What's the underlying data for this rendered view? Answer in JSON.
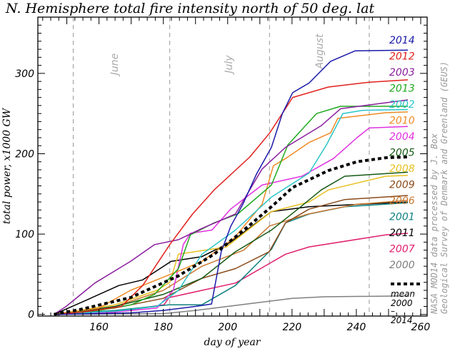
{
  "chart_data": {
    "type": "line",
    "title": "N. Hemisphere total fire intensity north of 50 deg. lat",
    "xlabel": "day of year",
    "ylabel": "total power, x1000 GW",
    "xlim": [
      141,
      262
    ],
    "ylim": [
      -2,
      370
    ],
    "xticks": [
      160,
      180,
      200,
      220,
      240,
      260
    ],
    "yticks": [
      0,
      100,
      200,
      300
    ],
    "grid": false,
    "legend_placement": "right",
    "month_markers": [
      {
        "label": "June",
        "day": 152
      },
      {
        "label": "July",
        "day": 182
      },
      {
        "label": "August",
        "day": 213
      },
      {
        "label": "",
        "day": 244
      }
    ],
    "credit_lines": [
      "NASA MOD14 data processed by J. Box",
      "Geological Survey of Denmark and Greenland (GEUS)"
    ],
    "mean_label": [
      "mean",
      "2000",
      "–",
      "2014"
    ],
    "series": [
      {
        "name": "2014",
        "color": "#1a1aa8",
        "points": [
          [
            146,
            0
          ],
          [
            160,
            1
          ],
          [
            170,
            2
          ],
          [
            180,
            5
          ],
          [
            190,
            10
          ],
          [
            195,
            13
          ],
          [
            198,
            78
          ],
          [
            201,
            110
          ],
          [
            204.7,
            137
          ],
          [
            209,
            175
          ],
          [
            213.6,
            208
          ],
          [
            217,
            250
          ],
          [
            220.2,
            276
          ],
          [
            225.3,
            288
          ],
          [
            232,
            315
          ],
          [
            239.6,
            328
          ],
          [
            256,
            329
          ]
        ]
      },
      {
        "name": "2012",
        "color": "#e0201c",
        "points": [
          [
            146,
            0
          ],
          [
            155,
            3
          ],
          [
            167,
            10
          ],
          [
            173.6,
            36
          ],
          [
            182,
            87
          ],
          [
            189.1,
            125
          ],
          [
            195.8,
            155
          ],
          [
            206.9,
            196
          ],
          [
            213.1,
            226
          ],
          [
            220.2,
            270
          ],
          [
            231.3,
            283
          ],
          [
            244,
            289
          ],
          [
            256,
            292
          ]
        ]
      },
      {
        "name": "2003",
        "color": "#8a1e9e",
        "points": [
          [
            146,
            0
          ],
          [
            149.8,
            10
          ],
          [
            158.7,
            39
          ],
          [
            169.8,
            66
          ],
          [
            177.3,
            87
          ],
          [
            184.7,
            93
          ],
          [
            192,
            107
          ],
          [
            202.4,
            125
          ],
          [
            210.7,
            181
          ],
          [
            218,
            208
          ],
          [
            229.1,
            235
          ],
          [
            235.1,
            256
          ],
          [
            256,
            267
          ]
        ]
      },
      {
        "name": "2013",
        "color": "#1fa81f",
        "points": [
          [
            146,
            0
          ],
          [
            160,
            5
          ],
          [
            170,
            12
          ],
          [
            177.3,
            25
          ],
          [
            184.7,
            57
          ],
          [
            188.4,
            99
          ],
          [
            195.8,
            114
          ],
          [
            203.1,
            125
          ],
          [
            213.6,
            161
          ],
          [
            218.7,
            211
          ],
          [
            227.6,
            250
          ],
          [
            235.1,
            259
          ],
          [
            256,
            259
          ]
        ]
      },
      {
        "name": "2002",
        "color": "#2ac4c8",
        "points": [
          [
            146,
            0
          ],
          [
            165,
            4
          ],
          [
            178,
            10
          ],
          [
            184.7,
            30
          ],
          [
            192,
            75
          ],
          [
            202.4,
            105
          ],
          [
            213.6,
            146
          ],
          [
            225.3,
            176
          ],
          [
            230.7,
            211
          ],
          [
            235.8,
            250
          ],
          [
            241.8,
            254
          ],
          [
            256,
            255
          ]
        ]
      },
      {
        "name": "2010",
        "color": "#f08a24",
        "points": [
          [
            146,
            0
          ],
          [
            160,
            8
          ],
          [
            169.8,
            30
          ],
          [
            181,
            48
          ],
          [
            192,
            66
          ],
          [
            202,
            95
          ],
          [
            210.7,
            137
          ],
          [
            214.2,
            185
          ],
          [
            218,
            194
          ],
          [
            225.3,
            214
          ],
          [
            232,
            226
          ],
          [
            234.2,
            244
          ],
          [
            249.1,
            251
          ],
          [
            256,
            252
          ]
        ]
      },
      {
        "name": "2004",
        "color": "#e030e0",
        "points": [
          [
            146,
            0
          ],
          [
            165,
            3
          ],
          [
            178,
            8
          ],
          [
            183.1,
            30
          ],
          [
            186.2,
            87
          ],
          [
            188.4,
            101
          ],
          [
            195.1,
            105
          ],
          [
            200.9,
            131
          ],
          [
            210.7,
            161
          ],
          [
            223.1,
            172
          ],
          [
            232.9,
            194
          ],
          [
            240.2,
            220
          ],
          [
            244,
            232
          ],
          [
            256,
            234
          ]
        ]
      },
      {
        "name": "2005",
        "color": "#145a14",
        "points": [
          [
            146,
            0
          ],
          [
            165,
            10
          ],
          [
            180,
            25
          ],
          [
            192,
            45
          ],
          [
            202.4,
            78
          ],
          [
            213.6,
            105
          ],
          [
            221.8,
            131
          ],
          [
            229.1,
            155
          ],
          [
            236.4,
            172
          ],
          [
            256,
            177
          ]
        ]
      },
      {
        "name": "2008",
        "color": "#e8c020",
        "points": [
          [
            146,
            0
          ],
          [
            165,
            12
          ],
          [
            178,
            30
          ],
          [
            182,
            40
          ],
          [
            184.7,
            75
          ],
          [
            199.6,
            84
          ],
          [
            213.6,
            128
          ],
          [
            225.3,
            140
          ],
          [
            231.3,
            155
          ],
          [
            249.1,
            172
          ],
          [
            256,
            173
          ]
        ]
      },
      {
        "name": "2009",
        "color": "#8a4a1a",
        "points": [
          [
            146,
            0
          ],
          [
            165,
            8
          ],
          [
            180,
            20
          ],
          [
            192,
            45
          ],
          [
            202.4,
            57
          ],
          [
            212.9,
            78
          ],
          [
            218,
            114
          ],
          [
            225.3,
            131
          ],
          [
            236.4,
            143
          ],
          [
            256,
            148
          ]
        ]
      },
      {
        "name": "2006",
        "color": "#c87830",
        "points": [
          [
            146,
            0
          ],
          [
            165,
            10
          ],
          [
            180,
            30
          ],
          [
            192,
            60
          ],
          [
            205,
            80
          ],
          [
            213,
            110
          ],
          [
            225,
            125
          ],
          [
            240,
            137
          ],
          [
            256,
            142
          ]
        ]
      },
      {
        "name": "2001",
        "color": "#108080",
        "points": [
          [
            146,
            0
          ],
          [
            165,
            5
          ],
          [
            181.8,
            12
          ],
          [
            192,
            12
          ],
          [
            202.4,
            36
          ],
          [
            213.6,
            81
          ],
          [
            218,
            114
          ],
          [
            225.3,
            125
          ],
          [
            236.4,
            134
          ],
          [
            256,
            139
          ]
        ]
      },
      {
        "name": "2011",
        "color": "#000000",
        "points": [
          [
            146,
            0
          ],
          [
            155.1,
            16
          ],
          [
            166.2,
            36
          ],
          [
            173.6,
            43
          ],
          [
            182.4,
            66
          ],
          [
            192,
            72
          ],
          [
            200.9,
            90
          ],
          [
            213.6,
            128
          ],
          [
            225.3,
            134
          ],
          [
            256,
            140
          ]
        ]
      },
      {
        "name": "2007",
        "color": "#e01e6e",
        "points": [
          [
            146,
            0
          ],
          [
            165,
            3
          ],
          [
            180.2,
            12
          ],
          [
            181.8,
            21
          ],
          [
            192,
            30
          ],
          [
            202.4,
            39
          ],
          [
            218,
            75
          ],
          [
            225.3,
            84
          ],
          [
            249.1,
            99
          ],
          [
            256,
            101
          ]
        ]
      },
      {
        "name": "2000",
        "color": "#808080",
        "points": [
          [
            146,
            0
          ],
          [
            180,
            1
          ],
          [
            190,
            5
          ],
          [
            200,
            10
          ],
          [
            210,
            15
          ],
          [
            220,
            20
          ],
          [
            230,
            22
          ],
          [
            256,
            23
          ]
        ]
      }
    ],
    "mean": {
      "name": "mean 2000 – 2014",
      "color": "#000000",
      "points": [
        [
          146,
          0
        ],
        [
          155.1,
          7
        ],
        [
          169.8,
          21
        ],
        [
          184.7,
          48
        ],
        [
          195.8,
          75
        ],
        [
          205,
          105
        ],
        [
          213.6,
          134
        ],
        [
          220.2,
          158
        ],
        [
          231.3,
          179
        ],
        [
          240.2,
          190
        ],
        [
          249.1,
          195
        ],
        [
          256,
          196
        ]
      ]
    }
  }
}
